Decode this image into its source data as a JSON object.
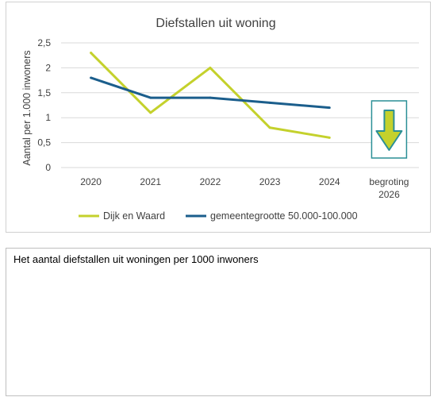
{
  "chart_data": {
    "type": "line",
    "title": "Diefstallen uit woning",
    "ylabel": "Aantal per 1.000 inwoners",
    "xlabel": "",
    "categories": [
      "2020",
      "2021",
      "2022",
      "2023",
      "2024",
      "begroting 2026"
    ],
    "ylim": [
      0,
      2.5
    ],
    "yticks": [
      "0",
      "0,5",
      "1",
      "1,5",
      "2",
      "2,5"
    ],
    "grid": true,
    "legend_position": "bottom",
    "series": [
      {
        "name": "Dijk en Waard",
        "color": "#c4d12c",
        "values": [
          2.3,
          1.1,
          2.0,
          0.8,
          0.6,
          null
        ]
      },
      {
        "name": "gemeentegrootte 50.000-100.000",
        "color": "#1b5e8c",
        "values": [
          1.8,
          1.4,
          1.4,
          1.3,
          1.2,
          null
        ]
      }
    ],
    "trend_indicator": {
      "icon": "arrow-down-icon",
      "category": "begroting 2026",
      "fill": "#c4d12c",
      "stroke": "#2a8f96"
    }
  },
  "description": "Het aantal diefstallen uit woningen per 1000 inwoners"
}
